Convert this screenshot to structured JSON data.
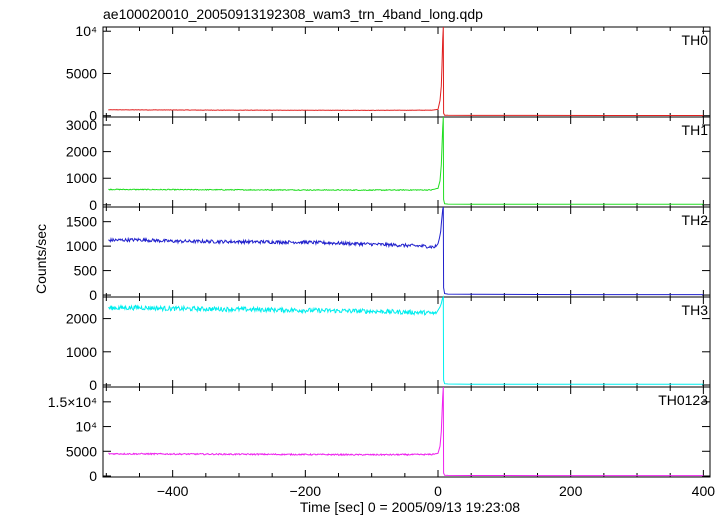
{
  "chart_data": {
    "type": "line",
    "title": "ae100020010_20050913192308_wam3_trn_4band_long.qdp",
    "xlabel": "Time [sec] 0 = 2005/09/13 19:23:08",
    "ylabel": "Counts/sec",
    "xlim": [
      -505,
      410
    ],
    "xticks": [
      {
        "v": -400,
        "label": "−400"
      },
      {
        "v": -200,
        "label": "−200"
      },
      {
        "v": 0,
        "label": "0"
      },
      {
        "v": 200,
        "label": "200"
      },
      {
        "v": 400,
        "label": "400"
      }
    ],
    "grid": false,
    "panels": [
      {
        "name": "TH0",
        "color": "#e02020",
        "ylim": [
          -150,
          10500
        ],
        "yticks": [
          {
            "v": 0,
            "label": "0"
          },
          {
            "v": 5000,
            "label": "5000"
          },
          {
            "v": 10000,
            "label": "10⁴"
          }
        ],
        "series": {
          "x": [
            -497,
            -400,
            -300,
            -200,
            -100,
            -10,
            0,
            3,
            5,
            6,
            7,
            8,
            8.5,
            10,
            15,
            50,
            150,
            250,
            350,
            400
          ],
          "y": [
            700,
            680,
            660,
            650,
            640,
            660,
            750,
            1800,
            3500,
            6000,
            9000,
            10500,
            300,
            60,
            50,
            40,
            35,
            30,
            30,
            30
          ]
        }
      },
      {
        "name": "TH1",
        "color": "#22dd22",
        "ylim": [
          -80,
          3300
        ],
        "yticks": [
          {
            "v": 0,
            "label": "0"
          },
          {
            "v": 1000,
            "label": "1000"
          },
          {
            "v": 2000,
            "label": "2000"
          },
          {
            "v": 3000,
            "label": "3000"
          }
        ],
        "series": {
          "x": [
            -497,
            -400,
            -300,
            -200,
            -100,
            -10,
            0,
            3,
            5,
            6,
            7,
            8,
            8.5,
            10,
            15,
            50,
            150,
            250,
            350,
            400
          ],
          "y": [
            580,
            570,
            565,
            560,
            555,
            560,
            620,
            900,
            1500,
            2200,
            2900,
            3300,
            200,
            40,
            30,
            25,
            22,
            20,
            20,
            20
          ]
        }
      },
      {
        "name": "TH2",
        "color": "#2020cc",
        "ylim": [
          -40,
          1800
        ],
        "yticks": [
          {
            "v": 0,
            "label": "0"
          },
          {
            "v": 500,
            "label": "500"
          },
          {
            "v": 1000,
            "label": "1000"
          },
          {
            "v": 1500,
            "label": "1500"
          }
        ],
        "series": {
          "x": [
            -497,
            -450,
            -400,
            -300,
            -200,
            -100,
            -20,
            -5,
            0,
            2,
            4,
            5,
            6,
            7,
            8,
            8.5,
            10,
            15,
            50,
            150,
            250,
            350,
            400
          ],
          "y": [
            1120,
            1130,
            1100,
            1090,
            1080,
            1040,
            1000,
            980,
            1050,
            1150,
            1300,
            1450,
            1600,
            1750,
            1800,
            150,
            30,
            20,
            15,
            12,
            10,
            10,
            10
          ]
        }
      },
      {
        "name": "TH3",
        "color": "#00eeee",
        "ylim": [
          -60,
          2650
        ],
        "yticks": [
          {
            "v": 0,
            "label": "0"
          },
          {
            "v": 1000,
            "label": "1000"
          },
          {
            "v": 2000,
            "label": "2000"
          }
        ],
        "series": {
          "x": [
            -497,
            -450,
            -400,
            -300,
            -200,
            -100,
            -20,
            -5,
            0,
            3,
            5,
            6,
            7,
            8,
            8.5,
            10,
            15,
            50,
            150,
            250,
            350,
            400
          ],
          "y": [
            2320,
            2330,
            2300,
            2280,
            2250,
            2220,
            2180,
            2150,
            2250,
            2350,
            2450,
            2550,
            2620,
            2650,
            150,
            40,
            30,
            25,
            22,
            20,
            20,
            20
          ]
        }
      },
      {
        "name": "TH0123",
        "color": "#ee22ee",
        "ylim": [
          -200,
          18000
        ],
        "yticks": [
          {
            "v": 0,
            "label": "0"
          },
          {
            "v": 5000,
            "label": "5000"
          },
          {
            "v": 10000,
            "label": "10⁴"
          },
          {
            "v": 15000,
            "label": "1.5×10⁴"
          }
        ],
        "series": {
          "x": [
            -497,
            -400,
            -300,
            -200,
            -100,
            -10,
            0,
            3,
            5,
            6,
            7,
            8,
            8.5,
            10,
            15,
            50,
            150,
            250,
            350,
            400
          ],
          "y": [
            4500,
            4450,
            4400,
            4350,
            4300,
            4350,
            4600,
            6000,
            9000,
            12500,
            16000,
            18000,
            600,
            150,
            120,
            100,
            90,
            80,
            80,
            80
          ]
        }
      }
    ]
  }
}
